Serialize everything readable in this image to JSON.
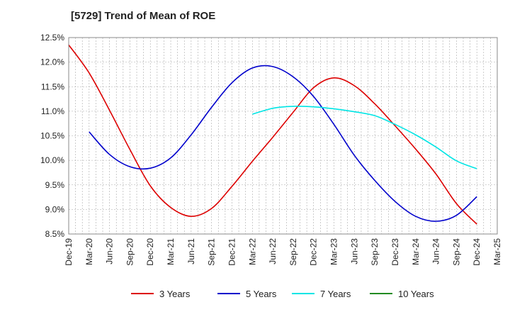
{
  "chart_data": {
    "type": "line",
    "title": "[5729]  Trend of Mean of ROE",
    "xlabel": "",
    "ylabel": "",
    "ylim": [
      8.5,
      12.5
    ],
    "yticks": [
      "12.5%",
      "12.0%",
      "11.5%",
      "11.0%",
      "10.5%",
      "10.0%",
      "9.5%",
      "9.0%",
      "8.5%"
    ],
    "ytick_values": [
      12.5,
      12.0,
      11.5,
      11.0,
      10.5,
      10.0,
      9.5,
      9.0,
      8.5
    ],
    "xtick_labels": [
      "Dec-19",
      "Mar-20",
      "Jun-20",
      "Sep-20",
      "Dec-20",
      "Mar-21",
      "Jun-21",
      "Sep-21",
      "Dec-21",
      "Mar-22",
      "Jun-22",
      "Sep-22",
      "Dec-22",
      "Mar-23",
      "Jun-23",
      "Sep-23",
      "Dec-23",
      "Mar-24",
      "Jun-24",
      "Sep-24",
      "Dec-24",
      "Mar-25"
    ],
    "grid": true,
    "legend_position": "bottom",
    "series": [
      {
        "name": "3 Years",
        "color": "#dd0000",
        "x": [
          0,
          1,
          2,
          3,
          4,
          5,
          6,
          7,
          8,
          9,
          10,
          11,
          12,
          13,
          14,
          15,
          16,
          17,
          18,
          19,
          20
        ],
        "values": [
          12.35,
          11.78,
          11.02,
          10.22,
          9.48,
          9.04,
          8.86,
          9.02,
          9.47,
          9.98,
          10.47,
          10.98,
          11.48,
          11.68,
          11.52,
          11.15,
          10.7,
          10.23,
          9.72,
          9.12,
          8.7
        ]
      },
      {
        "name": "5 Years",
        "color": "#0000cc",
        "x": [
          1,
          2,
          3,
          4,
          5,
          6,
          7,
          8,
          9,
          10,
          11,
          12,
          13,
          14,
          15,
          16,
          17,
          18,
          19,
          20
        ],
        "values": [
          10.58,
          10.12,
          9.87,
          9.84,
          10.05,
          10.52,
          11.08,
          11.58,
          11.88,
          11.91,
          11.7,
          11.3,
          10.73,
          10.1,
          9.59,
          9.16,
          8.86,
          8.76,
          8.88,
          9.26
        ]
      },
      {
        "name": "7 Years",
        "color": "#00e5e5",
        "x": [
          9,
          10,
          11,
          12,
          13,
          14,
          15,
          16,
          17,
          18,
          19,
          20
        ],
        "values": [
          10.94,
          11.06,
          11.1,
          11.09,
          11.05,
          10.99,
          10.91,
          10.73,
          10.52,
          10.27,
          9.99,
          9.83
        ]
      },
      {
        "name": "10 Years",
        "color": "#228b22",
        "x": [],
        "values": []
      }
    ]
  }
}
